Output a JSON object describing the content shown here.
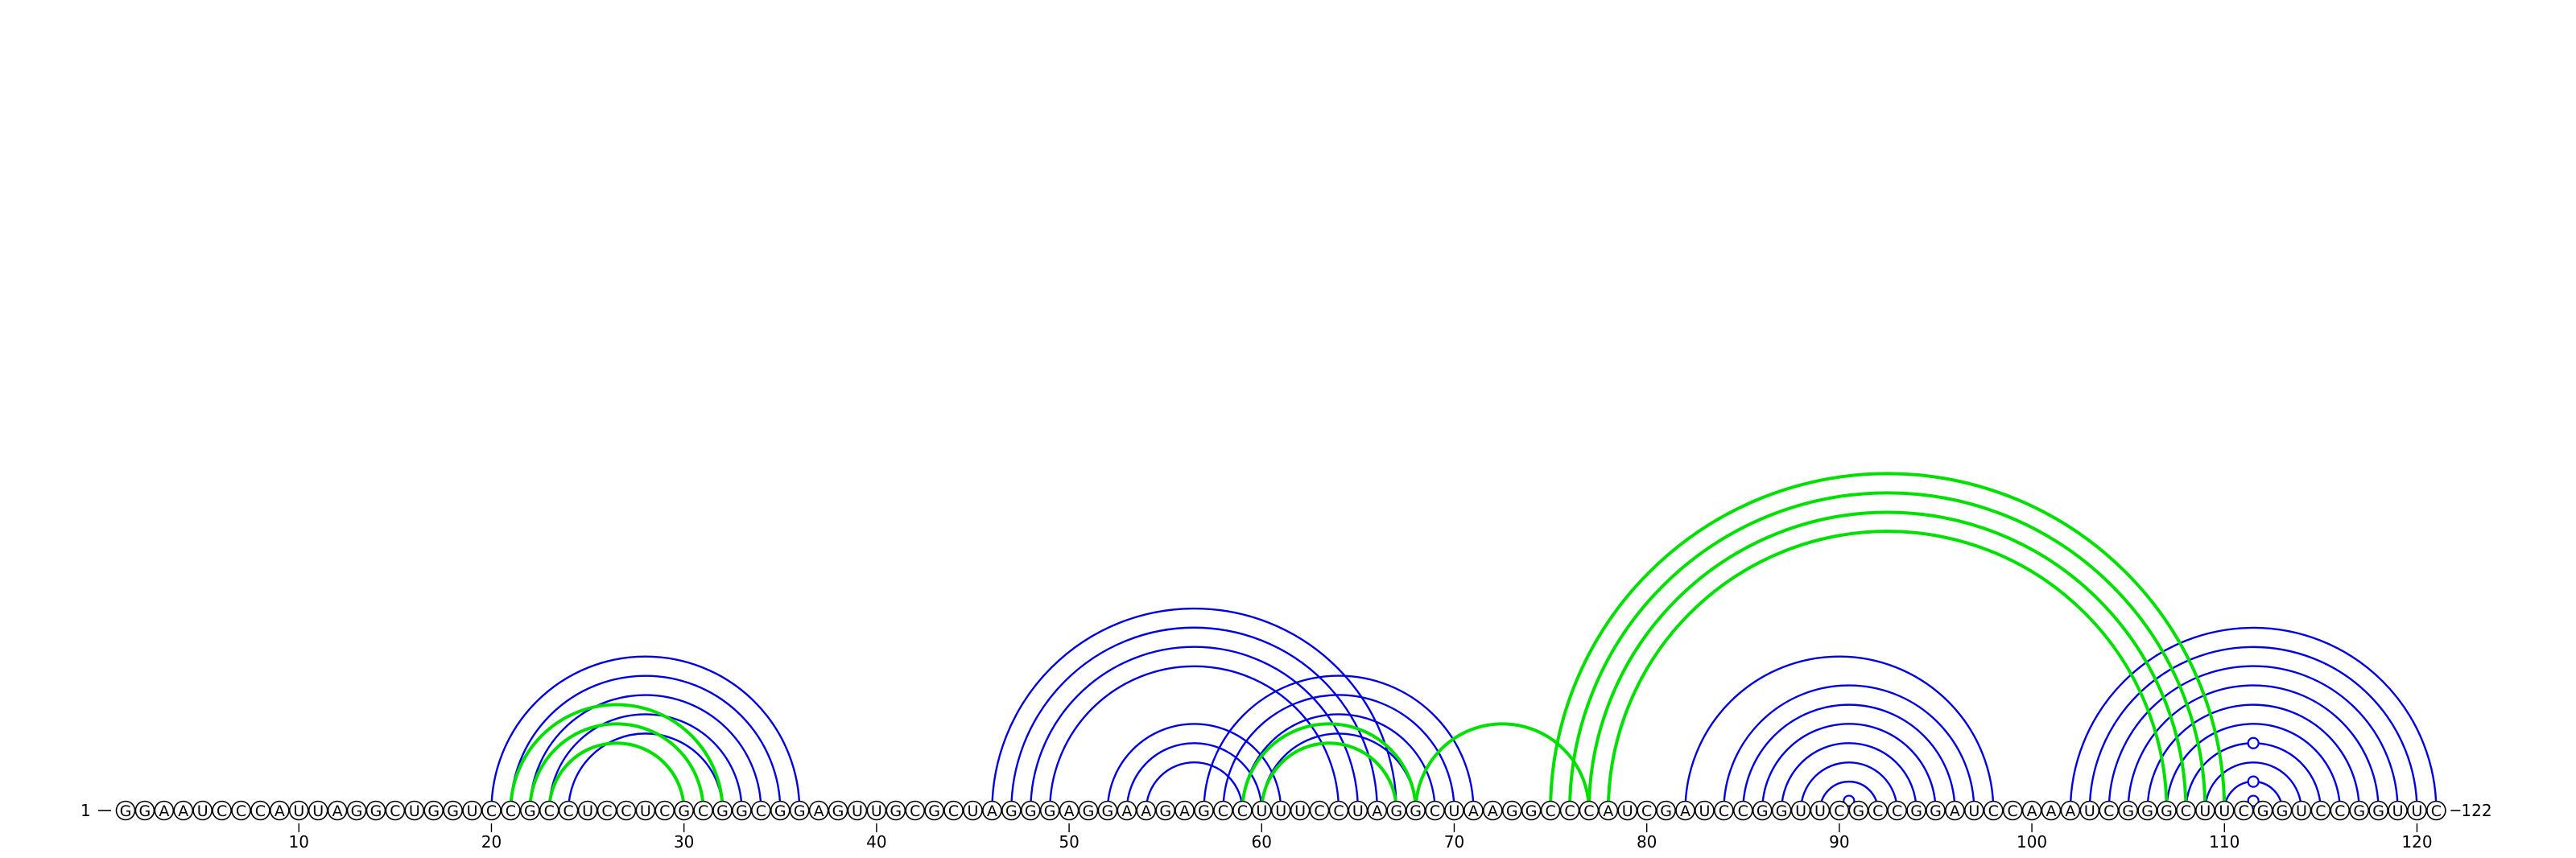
{
  "sequence": "GGAAUCCCAUUAGGCUGGUCCGCCUCCUCGCGGCGGAGUUGCGCUAGGGAGGAAGAGCCUUUCCUAGGCUAAGGCCCAUCGAUCCGGUUCGCCGGAUCCAAAUCGGGCUUCGGUCCGGUUC",
  "start_label": "1",
  "end_label": "122",
  "tick_labels": [
    "10",
    "20",
    "30",
    "40",
    "50",
    "60",
    "70",
    "80",
    "90",
    "100",
    "110",
    "120"
  ],
  "colors": {
    "primary_arcs": "#0000e0",
    "alternative_arcs": "#00e000"
  },
  "blue_pairs": [
    [
      20,
      36
    ],
    [
      21,
      35
    ],
    [
      22,
      34
    ],
    [
      23,
      33
    ],
    [
      24,
      32
    ],
    [
      46,
      67
    ],
    [
      47,
      66
    ],
    [
      48,
      65
    ],
    [
      49,
      64
    ],
    [
      52,
      61
    ],
    [
      53,
      60
    ],
    [
      54,
      59
    ],
    [
      57,
      71
    ],
    [
      58,
      70
    ],
    [
      59,
      69
    ],
    [
      60,
      68
    ],
    [
      82,
      98
    ],
    [
      84,
      97
    ],
    [
      85,
      96
    ],
    [
      86,
      95
    ],
    [
      87,
      94
    ],
    [
      88,
      93
    ],
    [
      89,
      92
    ],
    [
      102,
      121
    ],
    [
      103,
      120
    ],
    [
      104,
      119
    ],
    [
      105,
      118
    ],
    [
      106,
      117
    ],
    [
      107,
      116
    ],
    [
      108,
      115
    ],
    [
      109,
      114
    ],
    [
      110,
      113
    ]
  ],
  "green_pairs": [
    [
      21,
      32
    ],
    [
      22,
      31
    ],
    [
      23,
      30
    ],
    [
      59,
      68
    ],
    [
      60,
      67
    ],
    [
      68,
      77
    ],
    [
      75,
      110
    ],
    [
      76,
      109
    ],
    [
      77,
      108
    ],
    [
      78,
      107
    ]
  ],
  "apex_markers": [
    [
      90,
      91
    ],
    [
      111,
      112
    ],
    [
      110,
      113
    ],
    [
      108,
      115
    ]
  ]
}
